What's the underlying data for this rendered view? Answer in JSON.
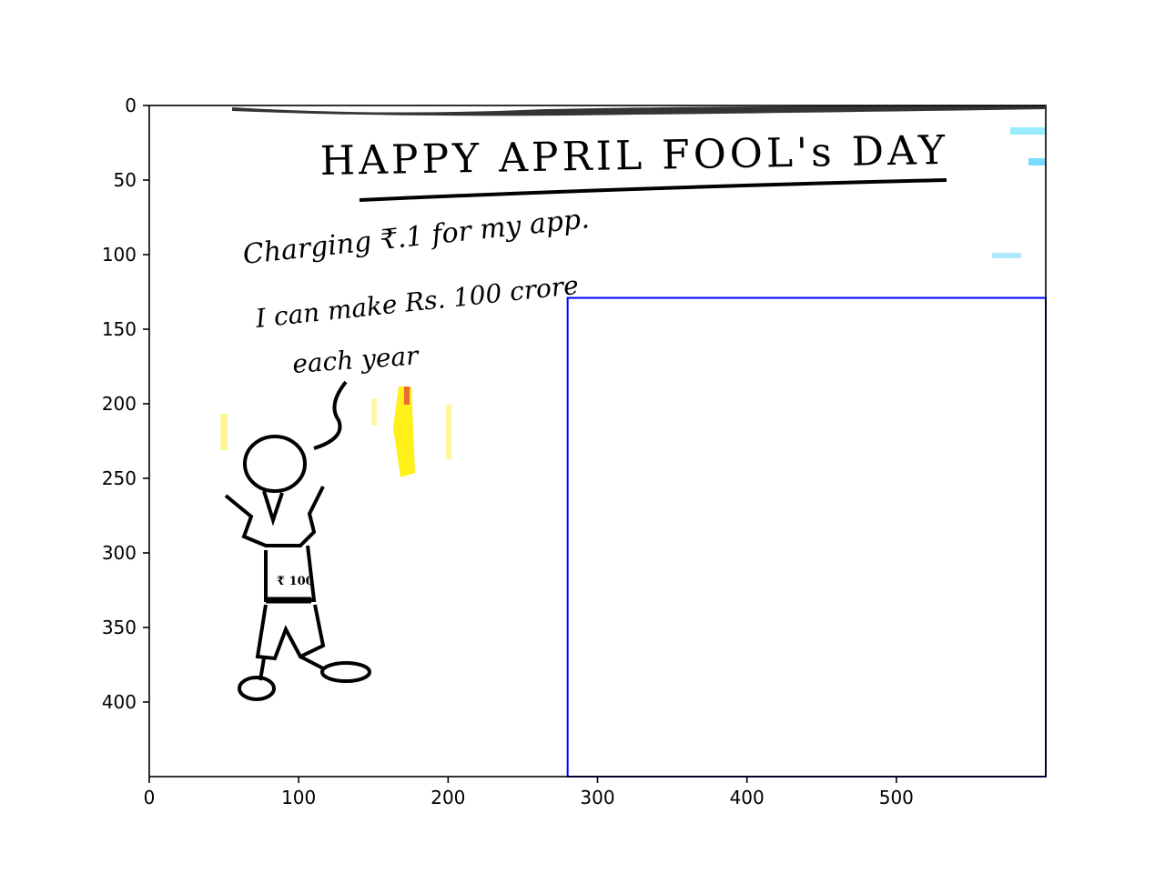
{
  "axes": {
    "x_ticks": [
      {
        "value": 0,
        "label": "0"
      },
      {
        "value": 100,
        "label": "100"
      },
      {
        "value": 200,
        "label": "200"
      },
      {
        "value": 300,
        "label": "300"
      },
      {
        "value": 400,
        "label": "400"
      },
      {
        "value": 500,
        "label": "500"
      }
    ],
    "y_ticks": [
      {
        "value": 0,
        "label": "0"
      },
      {
        "value": 50,
        "label": "50"
      },
      {
        "value": 100,
        "label": "100"
      },
      {
        "value": 150,
        "label": "150"
      },
      {
        "value": 200,
        "label": "200"
      },
      {
        "value": 250,
        "label": "250"
      },
      {
        "value": 300,
        "label": "300"
      },
      {
        "value": 350,
        "label": "350"
      },
      {
        "value": 400,
        "label": "400"
      }
    ],
    "x_range": [
      0,
      600
    ],
    "y_range": [
      450,
      0
    ],
    "y_inverted": true
  },
  "image_content": {
    "heading": "HAPPY APRIL FOOL's DAY",
    "speech_lines": [
      "Charging ₹.1 for my app.",
      "I can make Rs. 100 crore",
      "each year"
    ],
    "shirt_text": "₹ 100"
  },
  "overlay_box": {
    "x_start": 280,
    "x_end": 600,
    "y_start": 129,
    "y_end": 450,
    "color": "#0000ff"
  }
}
